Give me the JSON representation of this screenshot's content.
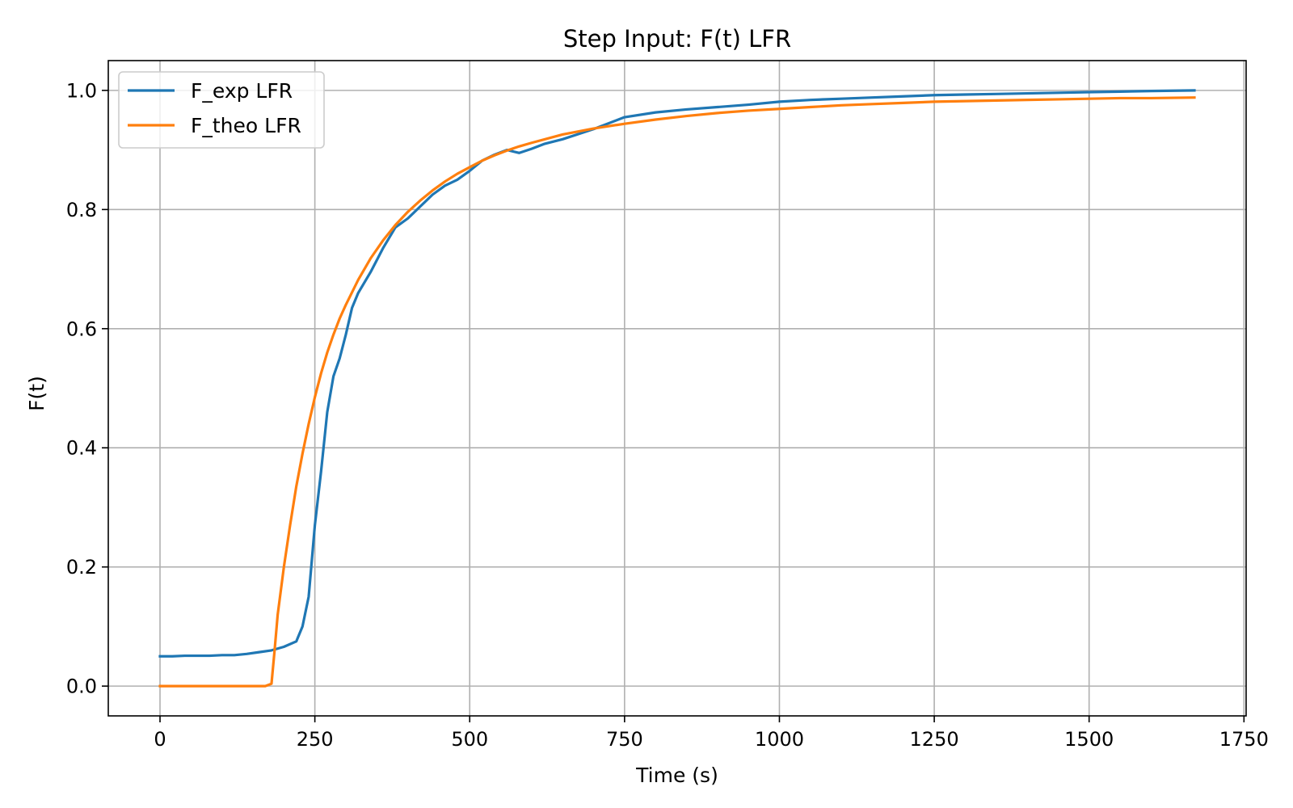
{
  "chart_data": {
    "type": "line",
    "title": "Step Input: F(t) LFR",
    "xlabel": "Time (s)",
    "ylabel": "F(t)",
    "xlim": [
      -83.5,
      1753.5
    ],
    "ylim": [
      -0.05,
      1.05
    ],
    "xticks": [
      0,
      250,
      500,
      750,
      1000,
      1250,
      1500,
      1750
    ],
    "xtick_labels": [
      "0",
      "250",
      "500",
      "750",
      "1000",
      "1250",
      "1500",
      "1750"
    ],
    "yticks": [
      0.0,
      0.2,
      0.4,
      0.6,
      0.8,
      1.0
    ],
    "ytick_labels": [
      "0.0",
      "0.2",
      "0.4",
      "0.6",
      "0.8",
      "1.0"
    ],
    "grid": true,
    "legend_position": "upper-left",
    "series": [
      {
        "name": "F_exp LFR",
        "color": "#1f77b4",
        "x": [
          0,
          20,
          40,
          60,
          80,
          100,
          120,
          140,
          160,
          180,
          200,
          220,
          230,
          240,
          250,
          260,
          270,
          280,
          290,
          300,
          310,
          320,
          340,
          360,
          380,
          400,
          420,
          440,
          460,
          480,
          500,
          520,
          540,
          560,
          580,
          600,
          620,
          650,
          700,
          750,
          800,
          850,
          900,
          950,
          1000,
          1050,
          1100,
          1150,
          1200,
          1250,
          1300,
          1350,
          1400,
          1450,
          1500,
          1550,
          1600,
          1670
        ],
        "y": [
          0.05,
          0.05,
          0.051,
          0.051,
          0.051,
          0.052,
          0.052,
          0.054,
          0.057,
          0.06,
          0.066,
          0.075,
          0.1,
          0.15,
          0.27,
          0.36,
          0.46,
          0.52,
          0.55,
          0.59,
          0.635,
          0.66,
          0.695,
          0.735,
          0.77,
          0.785,
          0.805,
          0.825,
          0.84,
          0.85,
          0.865,
          0.882,
          0.892,
          0.9,
          0.895,
          0.902,
          0.91,
          0.918,
          0.935,
          0.955,
          0.963,
          0.968,
          0.972,
          0.976,
          0.981,
          0.984,
          0.986,
          0.988,
          0.99,
          0.992,
          0.993,
          0.994,
          0.995,
          0.996,
          0.997,
          0.998,
          0.999,
          1.0
        ]
      },
      {
        "name": "F_theo LFR",
        "color": "#ff7f0e",
        "x": [
          0,
          20,
          40,
          60,
          80,
          100,
          120,
          140,
          160,
          170,
          180,
          185,
          190,
          200,
          210,
          220,
          230,
          240,
          250,
          260,
          270,
          280,
          290,
          300,
          320,
          340,
          360,
          380,
          400,
          420,
          440,
          460,
          480,
          500,
          520,
          540,
          560,
          580,
          600,
          650,
          700,
          750,
          800,
          850,
          900,
          950,
          1000,
          1050,
          1100,
          1150,
          1200,
          1250,
          1300,
          1350,
          1400,
          1450,
          1500,
          1550,
          1600,
          1670
        ],
        "y": [
          0,
          0,
          0,
          0,
          0,
          0,
          0,
          0,
          0,
          0,
          0.004,
          0.06,
          0.12,
          0.2,
          0.27,
          0.335,
          0.39,
          0.44,
          0.485,
          0.525,
          0.56,
          0.59,
          0.617,
          0.64,
          0.682,
          0.718,
          0.748,
          0.774,
          0.796,
          0.815,
          0.832,
          0.847,
          0.86,
          0.871,
          0.882,
          0.891,
          0.899,
          0.906,
          0.912,
          0.926,
          0.936,
          0.944,
          0.951,
          0.957,
          0.962,
          0.966,
          0.969,
          0.972,
          0.975,
          0.977,
          0.979,
          0.981,
          0.982,
          0.983,
          0.984,
          0.985,
          0.986,
          0.987,
          0.987,
          0.988
        ]
      }
    ]
  }
}
